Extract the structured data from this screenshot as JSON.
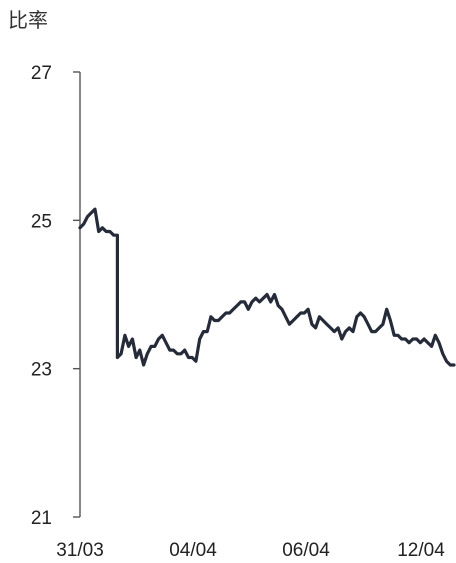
{
  "chart_data": {
    "type": "line",
    "title": "",
    "ylabel": "比率",
    "xlabel": "",
    "ylim": [
      21,
      27
    ],
    "yticks": [
      21,
      23,
      25,
      27
    ],
    "xlim": [
      0,
      100
    ],
    "xticks": [
      {
        "x": 0,
        "label": "31/03"
      },
      {
        "x": 30,
        "label": "04/04"
      },
      {
        "x": 61,
        "label": "06/04"
      },
      {
        "x": 91,
        "label": "12/04"
      }
    ],
    "grid": false,
    "legend": "none",
    "line_color": "#262b3a",
    "series": [
      {
        "x": [
          0,
          1,
          2,
          3,
          4,
          5,
          6,
          7,
          8,
          9,
          10,
          11,
          12,
          13,
          14,
          15,
          16,
          17,
          18,
          19,
          20,
          21,
          22,
          23,
          24,
          25,
          26,
          27,
          28,
          29,
          30,
          31,
          32,
          33,
          34,
          35,
          36,
          37,
          38,
          39,
          40,
          41,
          42,
          43,
          44,
          45,
          46,
          47,
          48,
          49,
          50,
          51,
          52,
          53,
          54,
          55,
          56,
          57,
          58,
          59,
          60,
          61,
          62,
          63,
          64,
          65,
          66,
          67,
          68,
          69,
          70,
          71,
          72,
          73,
          74,
          75,
          76,
          77,
          78,
          79,
          80,
          81,
          82,
          83,
          84,
          85,
          86,
          87,
          88,
          89,
          90,
          91,
          92,
          93,
          94,
          95,
          96,
          97,
          98,
          99,
          100
        ],
        "values": [
          24.9,
          24.95,
          25.05,
          25.1,
          25.15,
          24.85,
          24.9,
          24.85,
          24.85,
          24.8,
          23.15,
          23.2,
          23.45,
          23.3,
          23.4,
          23.15,
          23.25,
          23.05,
          23.2,
          23.3,
          23.3,
          23.4,
          23.45,
          23.35,
          23.25,
          23.25,
          23.2,
          23.2,
          23.25,
          23.15,
          23.15,
          23.1,
          23.4,
          23.5,
          23.5,
          23.7,
          23.65,
          23.65,
          23.7,
          23.75,
          23.75,
          23.8,
          23.85,
          23.9,
          23.9,
          23.8,
          23.9,
          23.95,
          23.9,
          23.95,
          24.0,
          23.9,
          24.0,
          23.85,
          23.8,
          23.7,
          23.6,
          23.65,
          23.7,
          23.75,
          23.75,
          23.8,
          23.6,
          23.55,
          23.7,
          23.65,
          23.6,
          23.55,
          23.5,
          23.55,
          23.4,
          23.5,
          23.55,
          23.5,
          23.7,
          23.75,
          23.7,
          23.6,
          23.5,
          23.5,
          23.55,
          23.6,
          23.8,
          23.65,
          23.45,
          23.45,
          23.4,
          23.4,
          23.35,
          23.4,
          23.4,
          23.35,
          23.4,
          23.35,
          23.3,
          23.45,
          23.35,
          23.2,
          23.1,
          23.05,
          23.05
        ]
      }
    ]
  }
}
